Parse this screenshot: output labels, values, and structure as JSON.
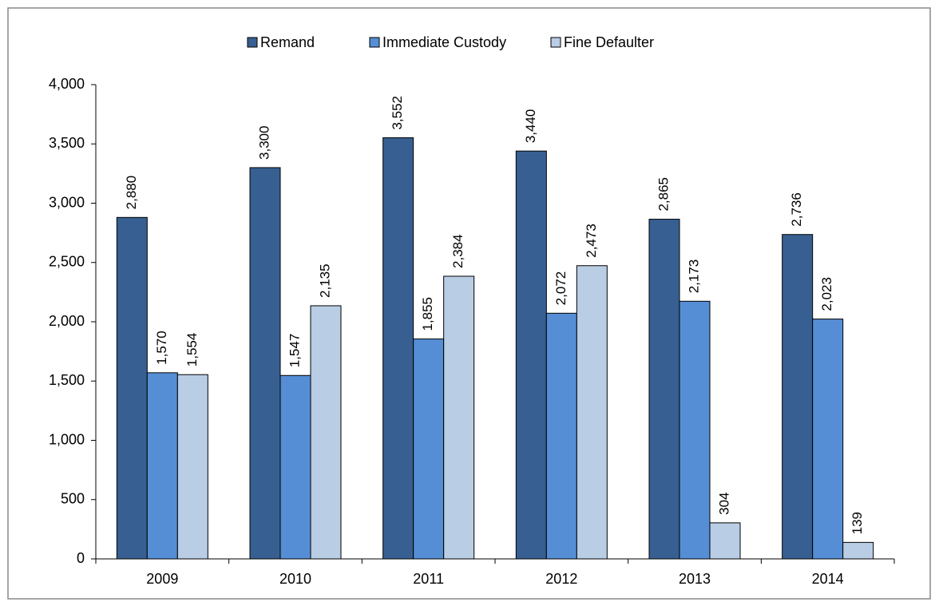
{
  "chart_data": {
    "type": "bar",
    "categories": [
      "2009",
      "2010",
      "2011",
      "2012",
      "2013",
      "2014"
    ],
    "series": [
      {
        "name": "Remand",
        "color": "#375f91",
        "values": [
          2880,
          3300,
          3552,
          3440,
          2865,
          2736
        ],
        "value_labels": [
          "2,880",
          "3,300",
          "3,552",
          "3,440",
          "2,865",
          "2,736"
        ]
      },
      {
        "name": "Immediate Custody",
        "color": "#558ed5",
        "values": [
          1570,
          1547,
          1855,
          2072,
          2173,
          2023
        ],
        "value_labels": [
          "1,570",
          "1,547",
          "1,855",
          "2,072",
          "2,173",
          "2,023"
        ]
      },
      {
        "name": "Fine Defaulter",
        "color": "#b9cde5",
        "values": [
          1554,
          2135,
          2384,
          2473,
          304,
          139
        ],
        "value_labels": [
          "1,554",
          "2,135",
          "2,384",
          "2,473",
          "304",
          "139"
        ]
      }
    ],
    "ylim": [
      0,
      4000
    ],
    "yticks": [
      0,
      500,
      {
        "value": 1000,
        "label": "1,000"
      },
      {
        "value": 1500,
        "label": "1,500"
      },
      {
        "value": 2000,
        "label": "2,000"
      },
      {
        "value": 2500,
        "label": "2,500"
      },
      {
        "value": 3000,
        "label": "3,000"
      },
      {
        "value": 3500,
        "label": "3,500"
      },
      {
        "value": 4000,
        "label": "4,000"
      }
    ],
    "legend": "top"
  }
}
